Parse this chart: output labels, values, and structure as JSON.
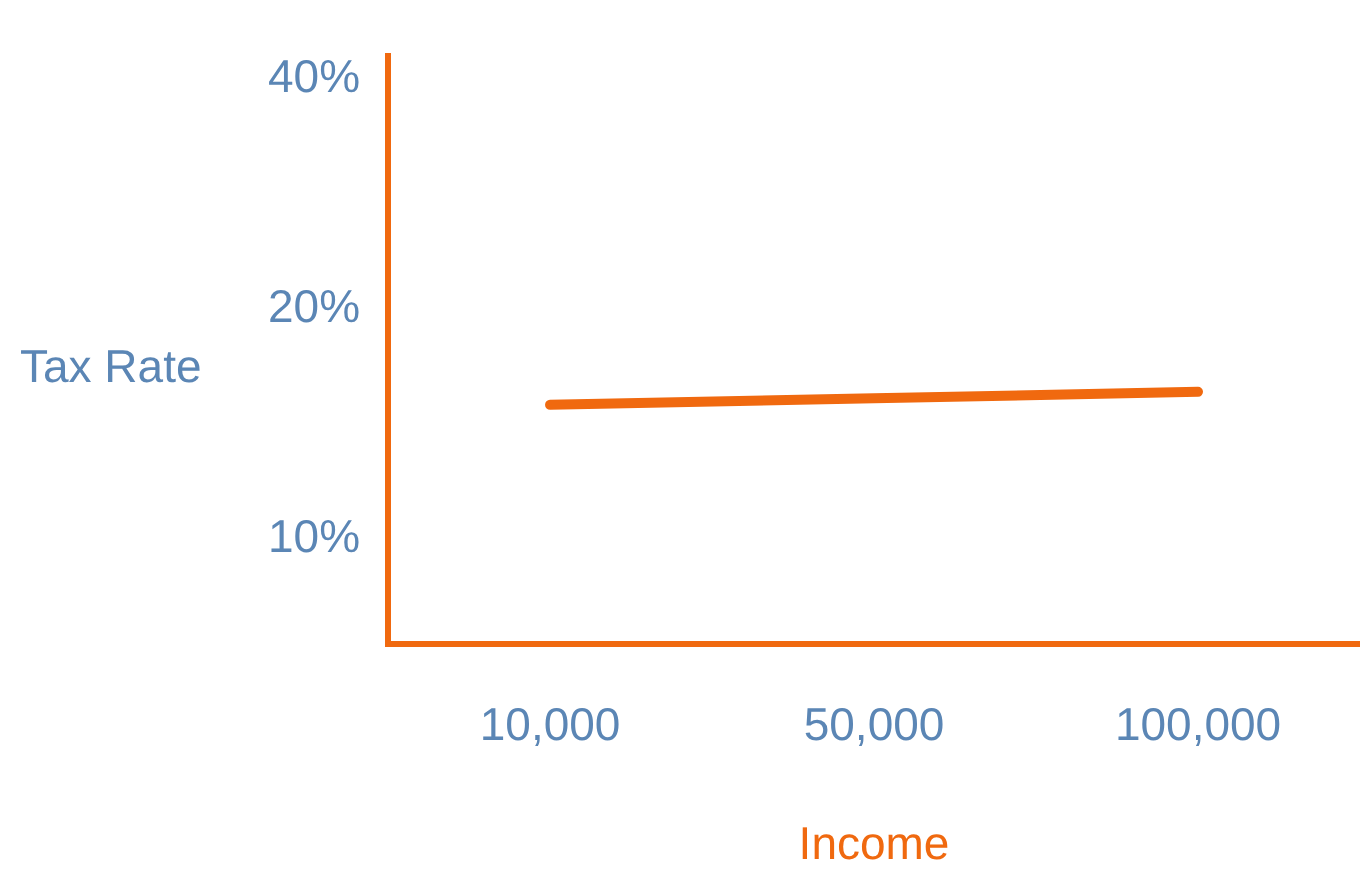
{
  "chart_data": {
    "type": "line",
    "xlabel": "Income",
    "ylabel": "Tax Rate",
    "categories": [
      "10,000",
      "50,000",
      "100,000"
    ],
    "series": [
      {
        "color": "#f0690f",
        "values": [
          15,
          15.3,
          15.6
        ]
      }
    ],
    "log": "y",
    "ylim": [
      7.3,
      43
    ],
    "yticks": [
      {
        "value": 10,
        "label": "10%"
      },
      {
        "value": 20,
        "label": "20%"
      },
      {
        "value": 40,
        "label": "40%"
      }
    ],
    "grid": false,
    "legend": false,
    "marker": "none",
    "line_style": "solid"
  }
}
